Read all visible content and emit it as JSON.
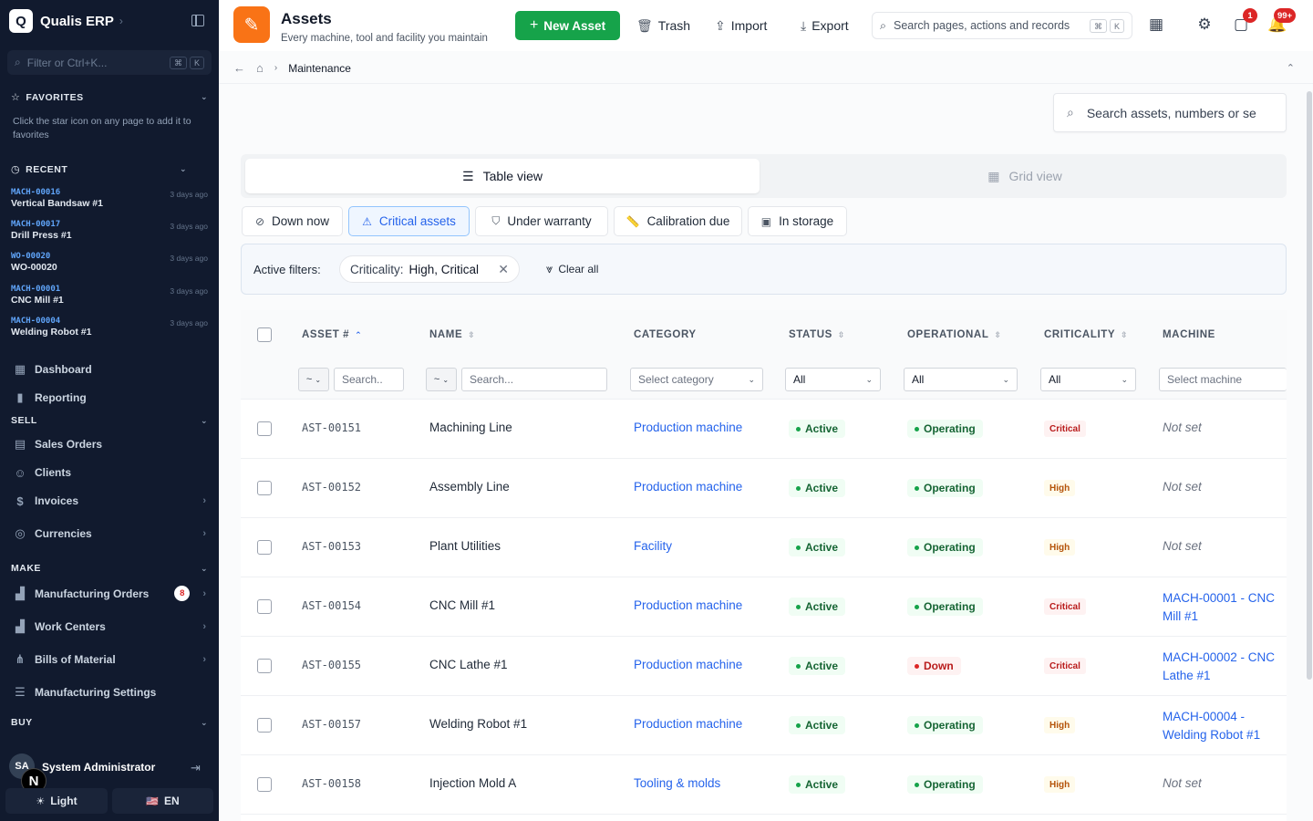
{
  "sidebar": {
    "brand_letter": "Q",
    "brand_name": "Qualis ERP",
    "filter_placeholder": "Filter or Ctrl+K...",
    "filter_kbd": [
      "⌘",
      "K"
    ],
    "favorites_label": "FAVORITES",
    "favorites_hint": "Click the star icon on any page to add it to favorites",
    "recent_label": "RECENT",
    "recent": [
      {
        "code": "MACH-00016",
        "title": "Vertical Bandsaw #1",
        "time": "3 days ago"
      },
      {
        "code": "MACH-00017",
        "title": "Drill Press #1",
        "time": "3 days ago"
      },
      {
        "code": "WO-00020",
        "title": "WO-00020",
        "time": "3 days ago"
      },
      {
        "code": "MACH-00001",
        "title": "CNC Mill #1",
        "time": "3 days ago"
      },
      {
        "code": "MACH-00004",
        "title": "Welding Robot #1",
        "time": "3 days ago"
      }
    ],
    "nav_top": [
      {
        "label": "Dashboard",
        "icon": "dashboard-icon"
      },
      {
        "label": "Reporting",
        "icon": "chart-icon"
      }
    ],
    "sell_label": "SELL",
    "sell": [
      {
        "label": "Sales Orders",
        "icon": "document-icon",
        "arrow": false
      },
      {
        "label": "Clients",
        "icon": "users-icon",
        "arrow": false
      },
      {
        "label": "Invoices",
        "icon": "invoice-icon",
        "arrow": true
      },
      {
        "label": "Currencies",
        "icon": "coins-icon",
        "arrow": true
      }
    ],
    "make_label": "MAKE",
    "make": [
      {
        "label": "Manufacturing Orders",
        "icon": "factory-icon",
        "badge": "8"
      },
      {
        "label": "Work Centers",
        "icon": "factory-icon",
        "arrow": true
      },
      {
        "label": "Bills of Material",
        "icon": "tree-icon",
        "arrow": true
      },
      {
        "label": "Manufacturing Settings",
        "icon": "sliders-icon",
        "arrow": false
      }
    ],
    "buy_label": "BUY",
    "user_initials": "SA",
    "user_name": "System Administrator",
    "theme_label": "Light",
    "lang_label": "EN",
    "lang_flag": "🇺🇸"
  },
  "header": {
    "title": "Assets",
    "subtitle": "Every machine, tool and facility you maintain",
    "new_label": "New Asset",
    "trash_label": "Trash",
    "import_label": "Import",
    "export_label": "Export",
    "search_placeholder": "Search pages, actions and records",
    "search_kbd": [
      "⌘",
      "K"
    ],
    "messages_badge": "1",
    "notifications_badge": "99+"
  },
  "breadcrumb": {
    "current": "Maintenance"
  },
  "asset_search_placeholder": "Search assets, numbers or se",
  "views": {
    "table": "Table view",
    "grid": "Grid view"
  },
  "quick_filters": [
    {
      "label": "Down now",
      "icon": "power-off-icon"
    },
    {
      "label": "Critical assets",
      "icon": "warning-icon"
    },
    {
      "label": "Under warranty",
      "icon": "shield-check-icon"
    },
    {
      "label": "Calibration due",
      "icon": "ruler-icon"
    },
    {
      "label": "In storage",
      "icon": "archive-icon"
    }
  ],
  "active_filters": {
    "label": "Active filters:",
    "pill_key": "Criticality:",
    "pill_value": "High, Critical",
    "clear_label": "Clear all"
  },
  "table": {
    "columns": [
      "ASSET #",
      "NAME",
      "CATEGORY",
      "STATUS",
      "OPERATIONAL",
      "CRITICALITY",
      "MACHINE"
    ],
    "filters": {
      "op": "~",
      "search_placeholder_1": "Search..",
      "search_placeholder_2": "Search...",
      "category_placeholder": "Select category",
      "status_value": "All",
      "operational_value": "All",
      "criticality_value": "All",
      "machine_placeholder": "Select machine"
    },
    "rows": [
      {
        "num": "AST-00151",
        "name": "Machining Line",
        "category": "Production machine",
        "status": "Active",
        "operational": "Operating",
        "criticality": "Critical",
        "machine": "Not set"
      },
      {
        "num": "AST-00152",
        "name": "Assembly Line",
        "category": "Production machine",
        "status": "Active",
        "operational": "Operating",
        "criticality": "High",
        "machine": "Not set"
      },
      {
        "num": "AST-00153",
        "name": "Plant Utilities",
        "category": "Facility",
        "status": "Active",
        "operational": "Operating",
        "criticality": "High",
        "machine": "Not set"
      },
      {
        "num": "AST-00154",
        "name": "CNC Mill #1",
        "category": "Production machine",
        "status": "Active",
        "operational": "Operating",
        "criticality": "Critical",
        "machine": "MACH-00001 - CNC Mill #1"
      },
      {
        "num": "AST-00155",
        "name": "CNC Lathe #1",
        "category": "Production machine",
        "status": "Active",
        "operational": "Down",
        "criticality": "Critical",
        "machine": "MACH-00002 - CNC Lathe #1"
      },
      {
        "num": "AST-00157",
        "name": "Welding Robot #1",
        "category": "Production machine",
        "status": "Active",
        "operational": "Operating",
        "criticality": "High",
        "machine": "MACH-00004 - Welding Robot #1"
      },
      {
        "num": "AST-00158",
        "name": "Injection Mold A",
        "category": "Tooling & molds",
        "status": "Active",
        "operational": "Operating",
        "criticality": "High",
        "machine": "Not set"
      }
    ]
  }
}
